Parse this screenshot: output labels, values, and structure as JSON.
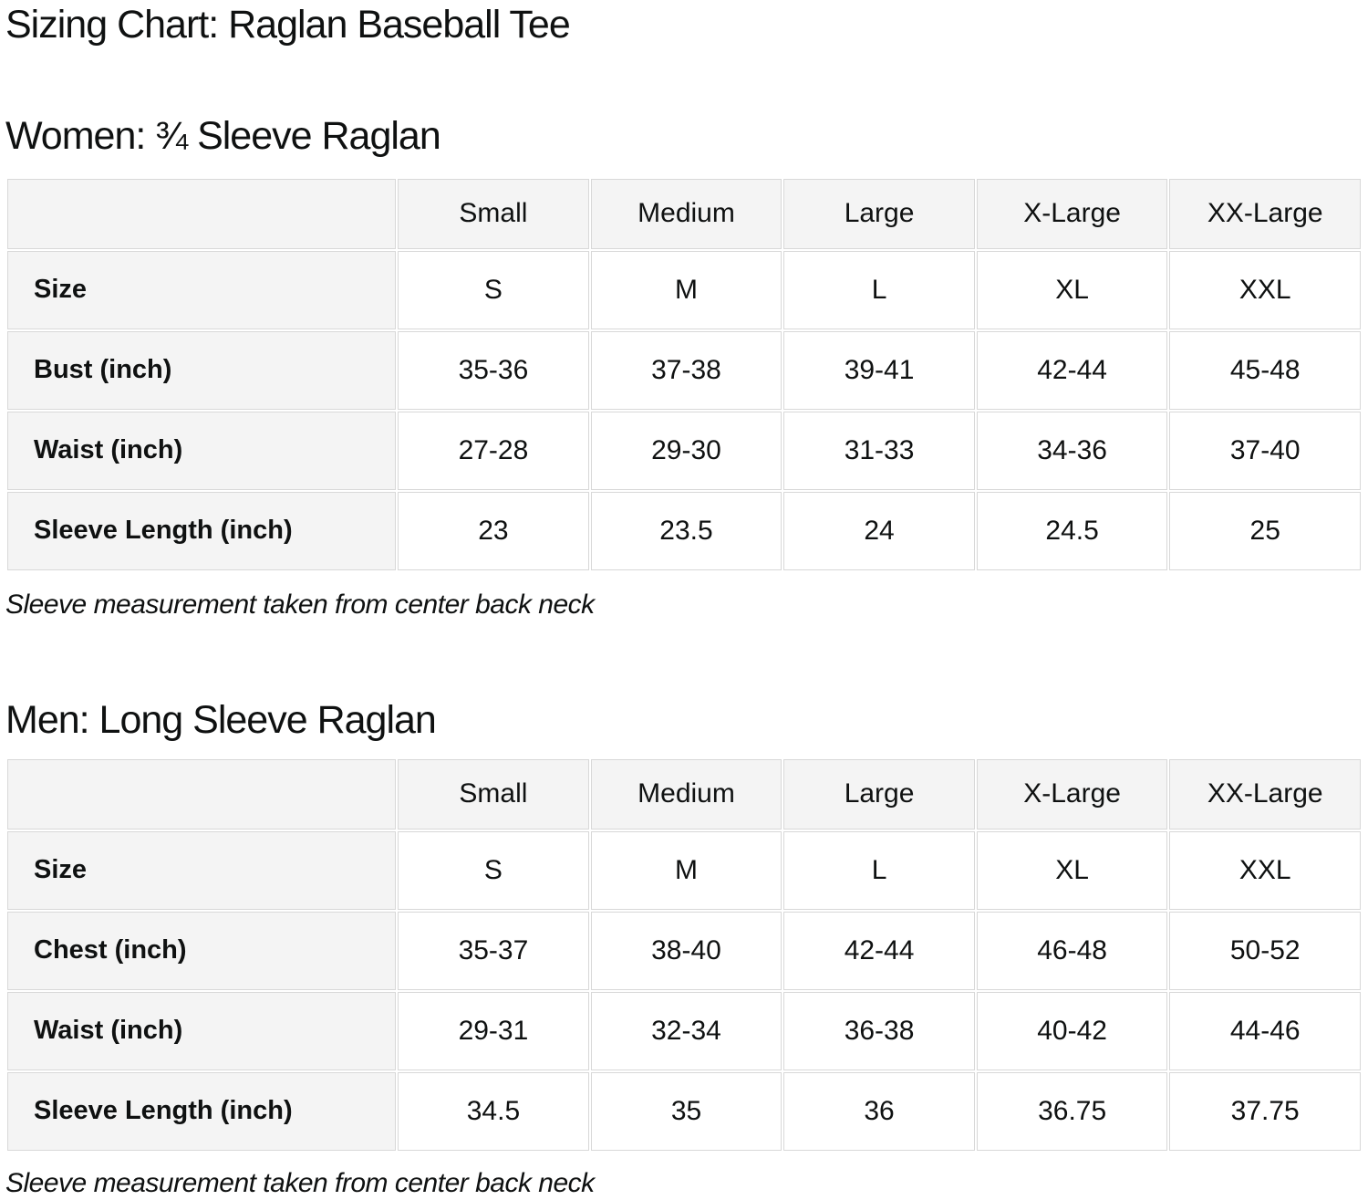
{
  "page_title": "Sizing Chart: Raglan Baseball Tee",
  "colors": {
    "background": "#ffffff",
    "text": "#0f1111",
    "table_border": "#d8d8d8",
    "header_cell_background": "#f4f4f4",
    "body_cell_background": "#ffffff"
  },
  "sections": [
    {
      "heading": "Women: ¾ Sleeve Raglan",
      "table": {
        "column_headers": [
          "",
          "Small",
          "Medium",
          "Large",
          "X-Large",
          "XX-Large"
        ],
        "rows": [
          {
            "label": "Size",
            "values": [
              "S",
              "M",
              "L",
              "XL",
              "XXL"
            ]
          },
          {
            "label": "Bust (inch)",
            "values": [
              "35-36",
              "37-38",
              "39-41",
              "42-44",
              "45-48"
            ]
          },
          {
            "label": "Waist (inch)",
            "values": [
              "27-28",
              "29-30",
              "31-33",
              "34-36",
              "37-40"
            ]
          },
          {
            "label": "Sleeve Length (inch)",
            "values": [
              "23",
              "23.5",
              "24",
              "24.5",
              "25"
            ]
          }
        ]
      },
      "note": "Sleeve measurement taken from center back neck"
    },
    {
      "heading": "Men: Long Sleeve Raglan",
      "table": {
        "column_headers": [
          "",
          "Small",
          "Medium",
          "Large",
          "X-Large",
          "XX-Large"
        ],
        "rows": [
          {
            "label": "Size",
            "values": [
              "S",
              "M",
              "L",
              "XL",
              "XXL"
            ]
          },
          {
            "label": "Chest (inch)",
            "values": [
              "35-37",
              "38-40",
              "42-44",
              "46-48",
              "50-52"
            ]
          },
          {
            "label": "Waist (inch)",
            "values": [
              "29-31",
              "32-34",
              "36-38",
              "40-42",
              "44-46"
            ]
          },
          {
            "label": "Sleeve Length (inch)",
            "values": [
              "34.5",
              "35",
              "36",
              "36.75",
              "37.75"
            ]
          }
        ]
      },
      "note": "Sleeve measurement taken from center back neck"
    }
  ]
}
